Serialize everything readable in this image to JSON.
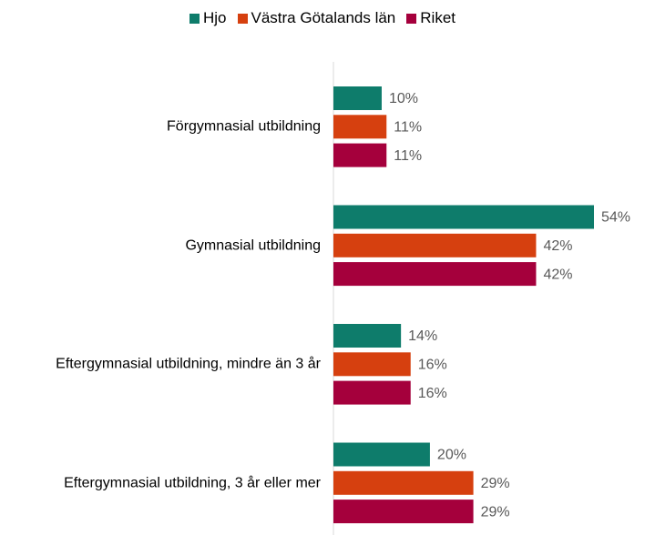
{
  "chart_data": {
    "type": "bar",
    "orientation": "horizontal",
    "categories": [
      "Förgymnasial utbildning",
      "Gymnasial utbildning",
      "Eftergymnasial utbildning, mindre än 3 år",
      "Eftergymnasial utbildning, 3 år eller mer"
    ],
    "series": [
      {
        "name": "Hjo",
        "color": "#0e7c6b",
        "values": [
          10,
          54,
          14,
          20
        ],
        "value_labels": [
          "10%",
          "54%",
          "14%",
          "20%"
        ]
      },
      {
        "name": "Västra Götalands län",
        "color": "#d6400f",
        "values": [
          11,
          42,
          16,
          29
        ],
        "value_labels": [
          "11%",
          "42%",
          "16%",
          "29%"
        ]
      },
      {
        "name": "Riket",
        "color": "#a5003c",
        "values": [
          11,
          42,
          16,
          29
        ],
        "value_labels": [
          "11%",
          "42%",
          "16%",
          "29%"
        ]
      }
    ],
    "xlim": [
      0,
      54
    ],
    "legend": "top"
  }
}
